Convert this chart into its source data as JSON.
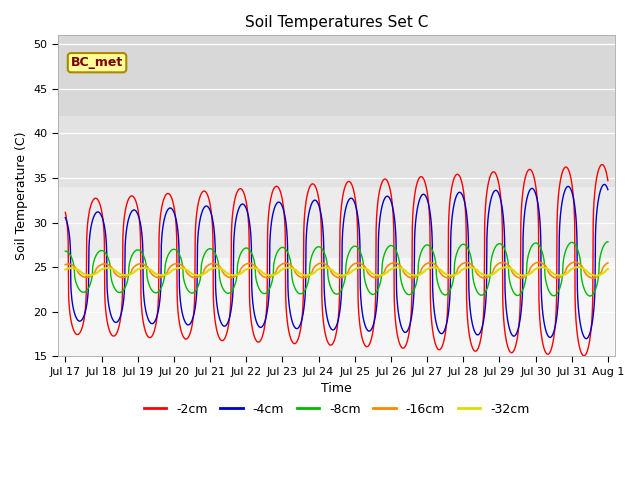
{
  "title": "Soil Temperatures Set C",
  "xlabel": "Time",
  "ylabel": "Soil Temperature (C)",
  "ylim": [
    15,
    51
  ],
  "yticks": [
    15,
    20,
    25,
    30,
    35,
    40,
    45,
    50
  ],
  "legend_labels": [
    "-2cm",
    "-4cm",
    "-8cm",
    "-16cm",
    "-32cm"
  ],
  "legend_colors": [
    "#ff0000",
    "#0000cc",
    "#00bb00",
    "#ff8800",
    "#dddd00"
  ],
  "annotation_text": "BC_met",
  "annotation_bg": "#ffff99",
  "annotation_border": "#aa8800",
  "bg_color": "#ffffff",
  "plot_bg_color": "#e8e8e8",
  "grid_color": "#ffffff",
  "start_day": 17,
  "end_day": 32,
  "points_per_day": 288,
  "shading_bands": [
    [
      42,
      51,
      "#d8d8d8"
    ],
    [
      34,
      42,
      "#e2e2e2"
    ],
    [
      26,
      34,
      "#ececec"
    ],
    [
      15,
      26,
      "#f6f6f6"
    ]
  ]
}
